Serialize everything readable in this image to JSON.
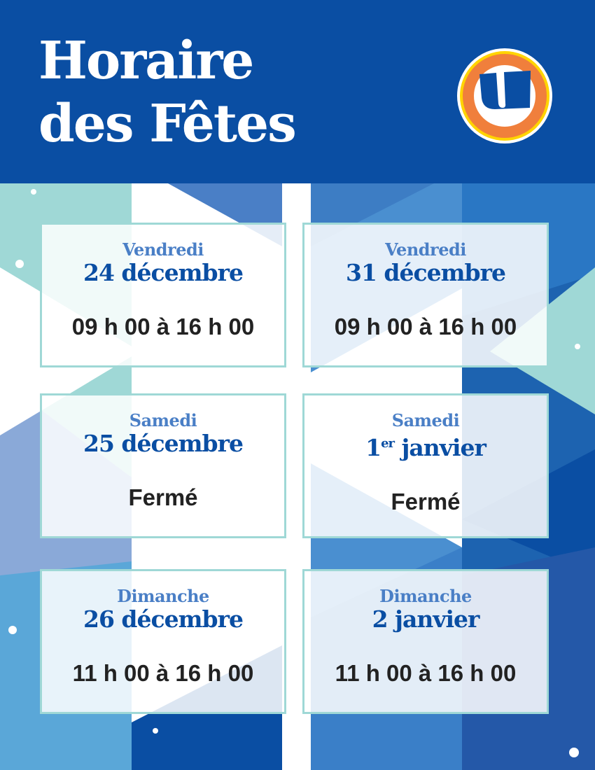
{
  "header": {
    "title_line1": "Horaire",
    "title_line2": "des Fêtes",
    "logo_icon": "u-logo",
    "logo_letter": "U"
  },
  "colors": {
    "brand_blue": "#0a4ea3",
    "day_blue": "#4a7fc6",
    "border_teal": "#9fd8d6",
    "logo_orange": "#f07f3c",
    "logo_yellow": "#ffd400"
  },
  "cards": [
    {
      "day": "Vendredi",
      "date": "24 décembre",
      "hours": "09 h 00 à 16 h 00"
    },
    {
      "day": "Vendredi",
      "date": "31 décembre",
      "hours": "09 h 00 à 16 h 00"
    },
    {
      "day": "Samedi",
      "date": "25 décembre",
      "hours": "Fermé"
    },
    {
      "day": "Samedi",
      "date_num": "1",
      "date_sup": "er",
      "date_rest": " janvier",
      "hours": "Fermé"
    },
    {
      "day": "Dimanche",
      "date": "26 décembre",
      "hours": "11 h 00 à 16 h 00"
    },
    {
      "day": "Dimanche",
      "date": "2 janvier",
      "hours": "11 h 00 à 16 h 00"
    }
  ]
}
